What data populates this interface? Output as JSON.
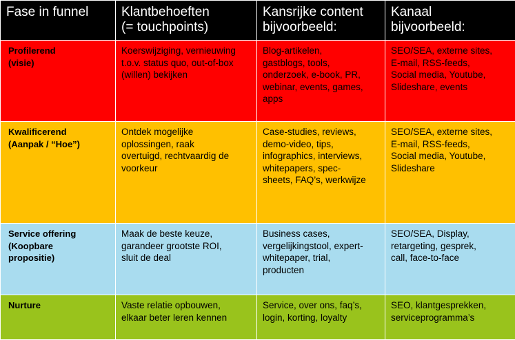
{
  "headers": [
    "Fase in funnel",
    "Klantbehoeften\n(= touchpoints)",
    "Kansrijke content\nbijvoorbeeld:",
    "Kanaal\nbijvoorbeeld:"
  ],
  "rows": [
    {
      "bg": "#ff0000",
      "phase": "Profilerend\n(visie)",
      "needs": "Koerswijziging, vernieuwing\nt.o.v. status quo, out-of-box\n(willen) bekijken",
      "content": "Blog-artikelen,\ngastblogs, tools,\nonderzoek, e-book, PR,\nwebinar, events, games,\napps",
      "channel": "SEO/SEA, externe sites,\nE-mail, RSS-feeds,\nSocial media, Youtube,\nSlideshare, events"
    },
    {
      "bg": "#ffc000",
      "phase": "Kwalificerend\n(Aanpak / “Hoe”)",
      "needs": "Ontdek mogelijke\noplossingen, raak\novertuigd, rechtvaardig de\nvoorkeur",
      "content": "Case-studies, reviews,\ndemo-video, tips,\ninfographics, interviews,\nwhitepapers, spec-\nsheets, FAQ’s, werkwijze",
      "channel": "SEO/SEA, externe sites,\nE-mail, RSS-feeds,\nSocial media, Youtube,\nSlideshare"
    },
    {
      "bg": "#a9dcef",
      "phase": "Service offering\n(Koopbare\npropositie)",
      "needs": "Maak de beste keuze,\ngarandeer grootste ROI,\nsluit de deal",
      "content": "Business cases,\nvergelijkingstool, expert-\nwhitepaper, trial,\nproducten",
      "channel": "SEO/SEA, Display,\nretargeting, gesprek,\ncall, face-to-face"
    },
    {
      "bg": "#99c31c",
      "phase": "Nurture",
      "needs": "Vaste relatie opbouwen,\nelkaar beter leren kennen",
      "content": "Service, over ons, faq’s,\nlogin, korting, loyalty",
      "channel": "SEO, klantgesprekken,\nserviceprogramma’s"
    }
  ]
}
